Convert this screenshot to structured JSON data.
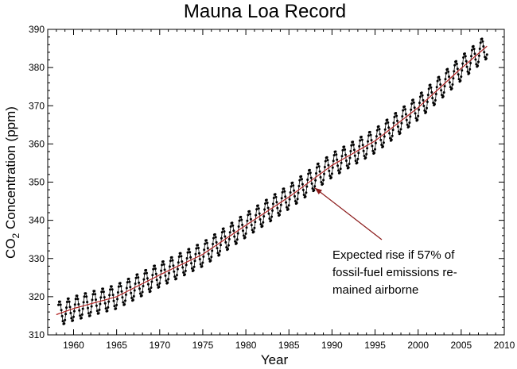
{
  "chart_data": {
    "type": "line",
    "title": "Mauna Loa Record",
    "xlabel": "Year",
    "ylabel": {
      "prefix": "CO",
      "subscript": "2",
      "suffix": " Concentration (ppm)"
    },
    "xlim": [
      1957,
      2010
    ],
    "ylim": [
      310,
      390
    ],
    "xticks": [
      1960,
      1965,
      1970,
      1975,
      1980,
      1985,
      1990,
      1995,
      2000,
      2005,
      2010
    ],
    "yticks": [
      310,
      320,
      330,
      340,
      350,
      360,
      370,
      380,
      390
    ],
    "grid": false,
    "series": [
      {
        "role": "monthly-measurements",
        "style": "black line with dot markers",
        "color": "#000000",
        "x_start": 1958.25,
        "x_step": 0.0833333,
        "annual_mean": {
          "x": [
            1958,
            1960,
            1965,
            1970,
            1975,
            1980,
            1985,
            1990,
            1995,
            2000,
            2005,
            2008
          ],
          "y": [
            315.3,
            316.9,
            320.0,
            325.7,
            331.1,
            338.7,
            346.1,
            354.4,
            360.8,
            369.5,
            379.8,
            385.6
          ]
        },
        "seasonal_amplitude": 3.2
      },
      {
        "role": "expected-rise-curve",
        "style": "thin red line",
        "color": "#b22222",
        "x": [
          1958,
          1960,
          1965,
          1970,
          1975,
          1980,
          1985,
          1990,
          1995,
          2000,
          2005,
          2008
        ],
        "y": [
          315.3,
          316.9,
          320.0,
          325.7,
          331.1,
          338.7,
          346.1,
          354.4,
          360.8,
          369.5,
          379.8,
          385.6
        ]
      }
    ],
    "annotations": [
      {
        "lines": [
          "Expected rise if 57% of",
          "fossil-fuel emissions re-",
          "mained airborne"
        ],
        "arrow_to": {
          "x": 1988.0,
          "y": 348.5
        },
        "arrow_color": "#8b1a1a"
      }
    ]
  }
}
